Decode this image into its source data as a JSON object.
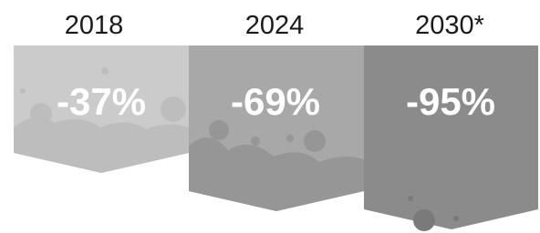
{
  "items": [
    {
      "year": "2018",
      "label": "-37%"
    },
    {
      "year": "2024",
      "label": "-69%"
    },
    {
      "year": "2030*",
      "label": "-95%"
    }
  ]
}
